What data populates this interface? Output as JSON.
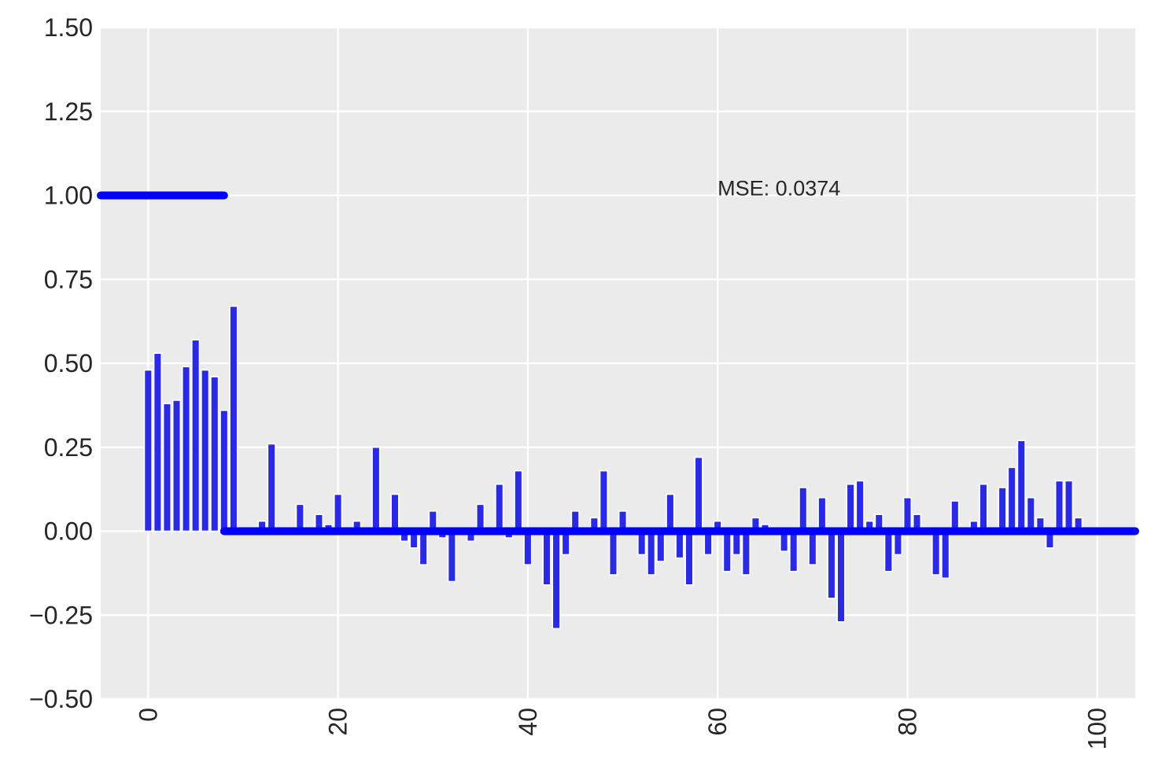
{
  "chart_data": {
    "type": "bar",
    "title": "",
    "xlabel": "",
    "ylabel": "",
    "xlim": [
      -5,
      104
    ],
    "ylim": [
      -0.5,
      1.5
    ],
    "grid": true,
    "background": "#ebebeb",
    "x_ticks": [
      0,
      20,
      40,
      60,
      80,
      100
    ],
    "x_tick_labels": [
      "0",
      "20",
      "40",
      "60",
      "80",
      "100"
    ],
    "y_ticks": [
      -0.5,
      -0.25,
      0.0,
      0.25,
      0.5,
      0.75,
      1.0,
      1.25,
      1.5
    ],
    "y_tick_labels": [
      "−0.50",
      "−0.25",
      "0.00",
      "0.25",
      "0.50",
      "0.75",
      "1.00",
      "1.25",
      "1.50"
    ],
    "annotation": {
      "text": "MSE: 0.0374",
      "x": 60,
      "y": 1.0
    },
    "bars": {
      "color": "#2a2ae6",
      "x": [
        0,
        1,
        2,
        3,
        4,
        5,
        6,
        7,
        8,
        9,
        10,
        11,
        12,
        13,
        14,
        15,
        16,
        17,
        18,
        19,
        20,
        21,
        22,
        23,
        24,
        25,
        26,
        27,
        28,
        29,
        30,
        31,
        32,
        33,
        34,
        35,
        36,
        37,
        38,
        39,
        40,
        41,
        42,
        43,
        44,
        45,
        46,
        47,
        48,
        49,
        50,
        51,
        52,
        53,
        54,
        55,
        56,
        57,
        58,
        59,
        60,
        61,
        62,
        63,
        64,
        65,
        66,
        67,
        68,
        69,
        70,
        71,
        72,
        73,
        74,
        75,
        76,
        77,
        78,
        79,
        80,
        81,
        82,
        83,
        84,
        85,
        86,
        87,
        88,
        89,
        90,
        91,
        92,
        93,
        94,
        95,
        96,
        97,
        98
      ],
      "values": [
        0.48,
        0.53,
        0.38,
        0.39,
        0.49,
        0.57,
        0.48,
        0.46,
        0.36,
        0.67,
        0.0,
        0.0,
        0.03,
        0.26,
        0.0,
        0.01,
        0.08,
        0.0,
        0.05,
        0.02,
        0.11,
        0.0,
        0.03,
        0.0,
        0.25,
        0.0,
        0.11,
        -0.03,
        -0.05,
        -0.1,
        0.06,
        -0.02,
        -0.15,
        -0.01,
        -0.03,
        0.08,
        0.01,
        0.14,
        -0.02,
        0.18,
        -0.1,
        0.0,
        -0.16,
        -0.29,
        -0.07,
        0.06,
        0.0,
        0.04,
        0.18,
        -0.13,
        0.06,
        0.0,
        -0.07,
        -0.13,
        -0.09,
        0.11,
        -0.08,
        -0.16,
        0.22,
        -0.07,
        0.03,
        -0.12,
        -0.07,
        -0.13,
        0.04,
        0.02,
        0.01,
        -0.06,
        -0.12,
        0.13,
        -0.1,
        0.1,
        -0.2,
        -0.27,
        0.14,
        0.15,
        0.03,
        0.05,
        -0.12,
        -0.07,
        0.1,
        0.05,
        0.01,
        -0.13,
        -0.14,
        0.09,
        0.0,
        0.03,
        0.14,
        0.0,
        0.13,
        0.19,
        0.27,
        0.1,
        0.04,
        -0.05,
        0.15,
        0.15,
        0.04
      ]
    },
    "series": [
      {
        "color": "#0000ff",
        "x": [
          -5,
          8
        ],
        "values": [
          1.0,
          1.0
        ]
      },
      {
        "color": "#0000ff",
        "x": [
          8,
          104
        ],
        "values": [
          0.0,
          0.0
        ]
      }
    ]
  }
}
